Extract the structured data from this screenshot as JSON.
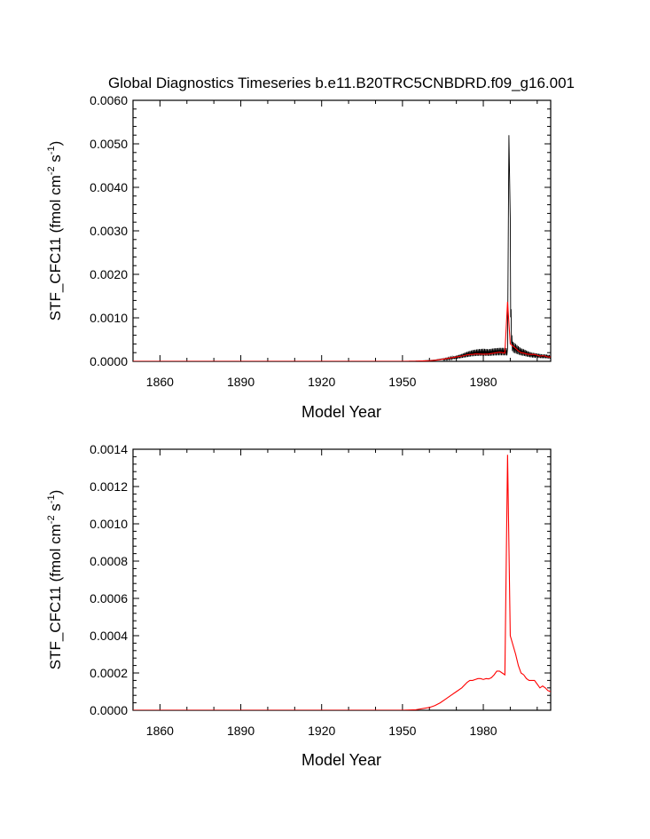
{
  "title": "Global Diagnostics Timeseries b.e11.B20TRC5CNBDRD.f09_g16.001",
  "colors": {
    "monthly": "#000000",
    "annual": "#ff0000",
    "axes": "#000000"
  },
  "chart_data": [
    {
      "type": "line",
      "panel": "top",
      "xlabel": "Model Year",
      "ylabel": "STF_CFC11 (fmol cm",
      "ylabel_unit_exp1": "-2",
      "ylabel_unit_mid": " s",
      "ylabel_unit_exp2": "-1",
      "ylabel_close": ")",
      "xlim": [
        1850,
        2005
      ],
      "ylim": [
        0.0,
        0.006
      ],
      "xticks": [
        1860,
        1890,
        1920,
        1950,
        1980
      ],
      "xtick_labels": [
        "1860",
        "1890",
        "1920",
        "1950",
        "1980"
      ],
      "yticks": [
        0.0,
        0.001,
        0.002,
        0.003,
        0.004,
        0.005,
        0.006
      ],
      "ytick_labels": [
        "0.0000",
        "0.0010",
        "0.0020",
        "0.0030",
        "0.0040",
        "0.0050",
        "0.0060"
      ],
      "series": [
        {
          "role": "monthly",
          "color": "#000000",
          "x": [
            1950.0,
            1955.0,
            1960.0,
            1962.0,
            1964.0,
            1966.0,
            1968.0,
            1970.0,
            1972.0,
            1974.0,
            1976.0,
            1978.0,
            1980.0,
            1982.0,
            1984.0,
            1986.0,
            1988.0,
            1989.0,
            1989.5,
            1990.0,
            1990.3,
            1990.6,
            1991.0,
            1992.0,
            1993.0,
            1994.0,
            1995.0,
            1996.0,
            1997.0,
            1998.0,
            1999.0,
            2000.0,
            2001.0,
            2002.0,
            2003.0,
            2004.0,
            2005.0
          ],
          "y": [
            0.0,
            5e-06,
            2e-05,
            3e-05,
            5e-05,
            7e-05,
            0.0001,
            0.00013,
            0.00017,
            0.00022,
            0.00026,
            0.00028,
            0.00029,
            0.00028,
            0.0003,
            0.00031,
            0.00031,
            0.0003,
            0.0052,
            0.0033,
            0.0012,
            0.0006,
            0.00045,
            0.0004,
            0.00035,
            0.0003,
            0.00028,
            0.00025,
            0.00022,
            0.0002,
            0.00019,
            0.00018,
            0.00017,
            0.00016,
            0.00016,
            0.00015,
            0.00014
          ],
          "oscillates_annually": true
        },
        {
          "role": "annual",
          "color": "#ff0000",
          "x": [
            1950,
            1955,
            1960,
            1962,
            1964,
            1966,
            1968,
            1970,
            1972,
            1974,
            1975,
            1976,
            1977,
            1978,
            1980,
            1982,
            1984,
            1986,
            1987,
            1988,
            1989,
            1990,
            1991,
            1992,
            1993,
            1994,
            1995,
            1996,
            1997,
            1998,
            1999,
            2000,
            2001,
            2002,
            2003,
            2004,
            2005
          ],
          "y": [
            0.0,
            3e-06,
            1.5e-05,
            2.5e-05,
            4e-05,
            6e-05,
            8e-05,
            0.0001,
            0.00012,
            0.00015,
            0.00016,
            0.00016,
            0.00017,
            0.00017,
            0.000165,
            0.00017,
            0.00019,
            0.00021,
            0.0002,
            0.00019,
            0.00137,
            0.0004,
            0.00035,
            0.0003,
            0.00024,
            0.0002,
            0.00019,
            0.00017,
            0.00016,
            0.00016,
            0.00016,
            0.00014,
            0.00012,
            0.00013,
            0.00012,
            0.0001,
            0.0001
          ]
        }
      ]
    },
    {
      "type": "line",
      "panel": "bottom",
      "xlabel": "Model Year",
      "ylabel": "STF_CFC11 (fmol cm",
      "ylabel_unit_exp1": "-2",
      "ylabel_unit_mid": " s",
      "ylabel_unit_exp2": "-1",
      "ylabel_close": ")",
      "xlim": [
        1850,
        2005
      ],
      "ylim": [
        0.0,
        0.0014
      ],
      "xticks": [
        1860,
        1890,
        1920,
        1950,
        1980
      ],
      "xtick_labels": [
        "1860",
        "1890",
        "1920",
        "1950",
        "1980"
      ],
      "yticks": [
        0.0,
        0.0002,
        0.0004,
        0.0006,
        0.0008,
        0.001,
        0.0012,
        0.0014
      ],
      "ytick_labels": [
        "0.0000",
        "0.0002",
        "0.0004",
        "0.0006",
        "0.0008",
        "0.0010",
        "0.0012",
        "0.0014"
      ],
      "series": [
        {
          "role": "annual",
          "color": "#ff0000",
          "x": [
            1850,
            1950,
            1955,
            1960,
            1962,
            1964,
            1966,
            1968,
            1970,
            1972,
            1974,
            1975,
            1976,
            1977,
            1978,
            1979,
            1980,
            1981,
            1982,
            1983,
            1984,
            1985,
            1986,
            1987,
            1988,
            1989,
            1990,
            1991,
            1992,
            1993,
            1994,
            1995,
            1996,
            1997,
            1998,
            1999,
            2000,
            2001,
            2002,
            2003,
            2004,
            2005
          ],
          "y": [
            0.0,
            0.0,
            3e-06,
            1.5e-05,
            2.5e-05,
            4e-05,
            6e-05,
            8e-05,
            0.0001,
            0.00012,
            0.00015,
            0.00016,
            0.00016,
            0.000165,
            0.00017,
            0.00017,
            0.000165,
            0.00017,
            0.000168,
            0.000175,
            0.00019,
            0.00021,
            0.00021,
            0.0002,
            0.00019,
            0.00137,
            0.0004,
            0.00035,
            0.0003,
            0.00024,
            0.0002,
            0.00019,
            0.00017,
            0.00016,
            0.00016,
            0.00016,
            0.00014,
            0.00012,
            0.00013,
            0.00012,
            0.000105,
            0.0001
          ]
        }
      ]
    }
  ]
}
